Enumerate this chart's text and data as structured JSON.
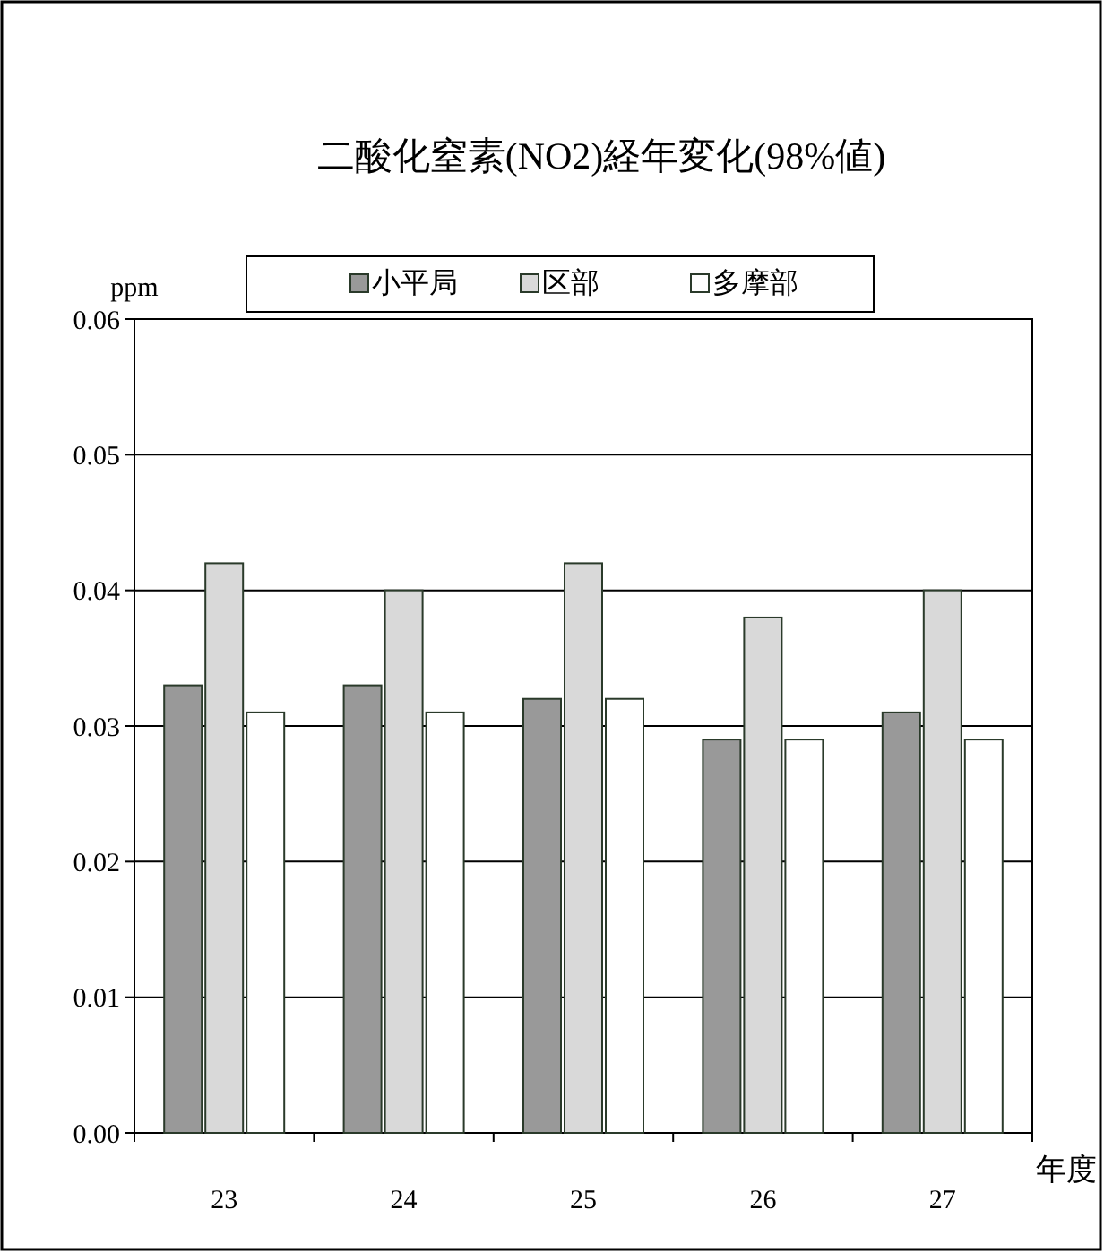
{
  "chart_data": {
    "type": "bar",
    "title": "二酸化窒素(NO2)経年変化(98%値)",
    "xlabel": "年度",
    "ylabel": "ppm",
    "categories": [
      "23",
      "24",
      "25",
      "26",
      "27"
    ],
    "series": [
      {
        "name": "小平局",
        "color": "#999999",
        "values": [
          0.033,
          0.033,
          0.032,
          0.029,
          0.031
        ]
      },
      {
        "name": "区部",
        "color": "#d9d9d9",
        "values": [
          0.042,
          0.04,
          0.042,
          0.038,
          0.04
        ]
      },
      {
        "name": "多摩部",
        "color": "#ffffff",
        "values": [
          0.031,
          0.031,
          0.032,
          0.029,
          0.029
        ]
      }
    ],
    "ylim": [
      0,
      0.06
    ],
    "yticks": [
      {
        "value": 0,
        "label": "0.00"
      },
      0.01,
      0.02,
      0.03,
      0.04,
      0.05,
      0.06
    ],
    "grid": "y",
    "legend": "top"
  }
}
